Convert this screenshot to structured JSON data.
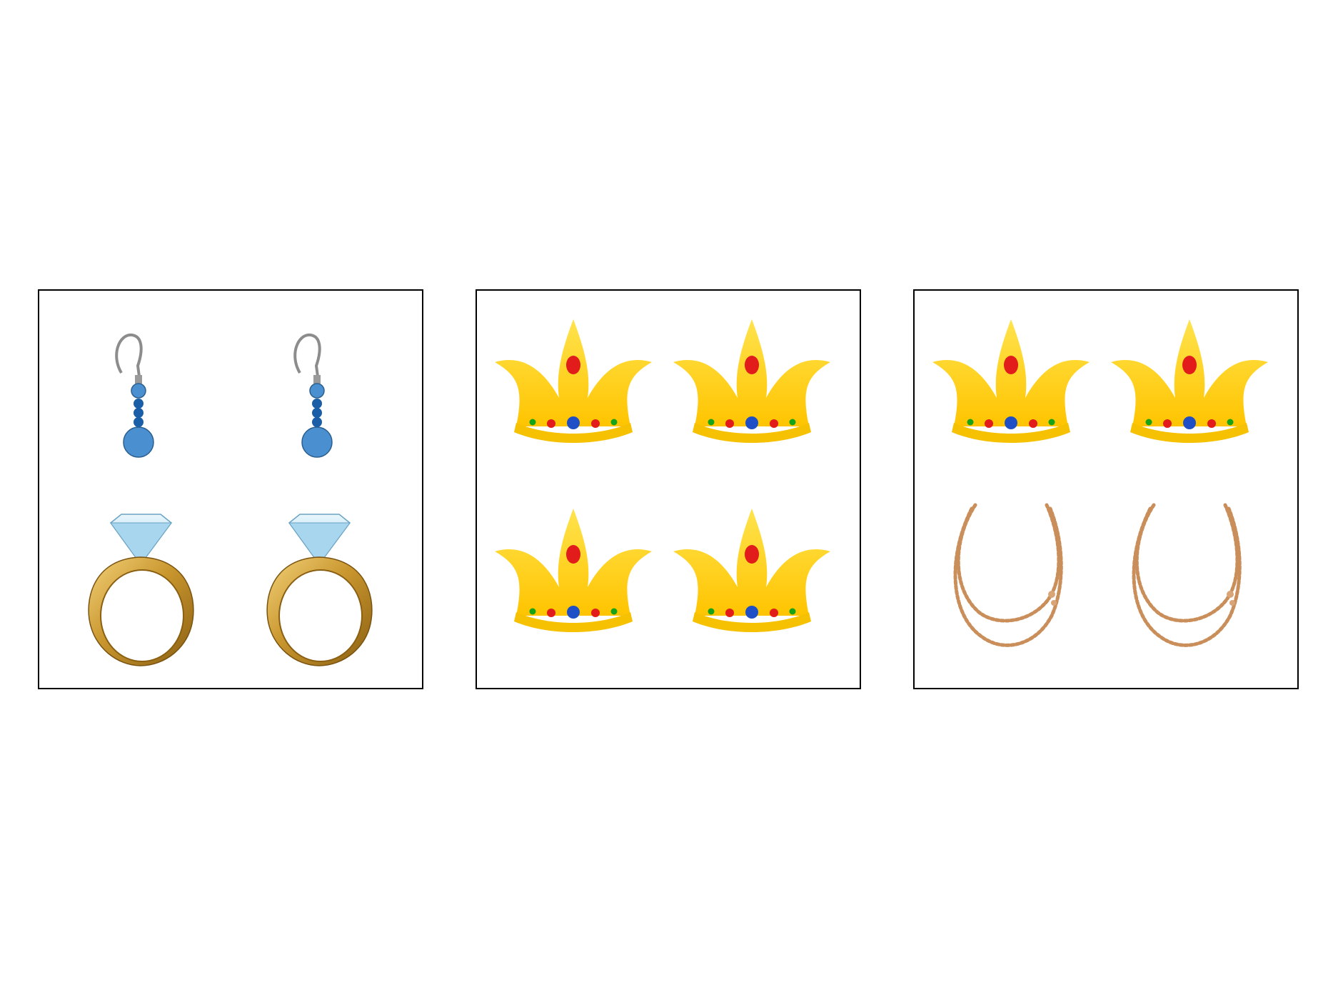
{
  "panels": [
    {
      "id": "panel-1",
      "items": [
        "earring-icon",
        "earring-icon",
        "ring-icon",
        "ring-icon"
      ]
    },
    {
      "id": "panel-2",
      "items": [
        "crown-icon",
        "crown-icon",
        "crown-icon",
        "crown-icon"
      ]
    },
    {
      "id": "panel-3",
      "items": [
        "crown-icon",
        "crown-icon",
        "necklace-icon",
        "necklace-icon"
      ]
    }
  ],
  "colors": {
    "border": "#000000",
    "earring_blue": "#4a8fd0",
    "earring_dark_blue": "#1b5ea8",
    "hook_grey": "#8c8c8c",
    "ring_gold": "#c9962e",
    "diamond": "#bfe3f5",
    "crown_gold": "#ffd200",
    "crown_gem_red": "#e21b1b",
    "crown_gem_blue": "#1f4fc6",
    "crown_gem_green": "#17a317",
    "necklace_copper": "#c98e5a"
  }
}
